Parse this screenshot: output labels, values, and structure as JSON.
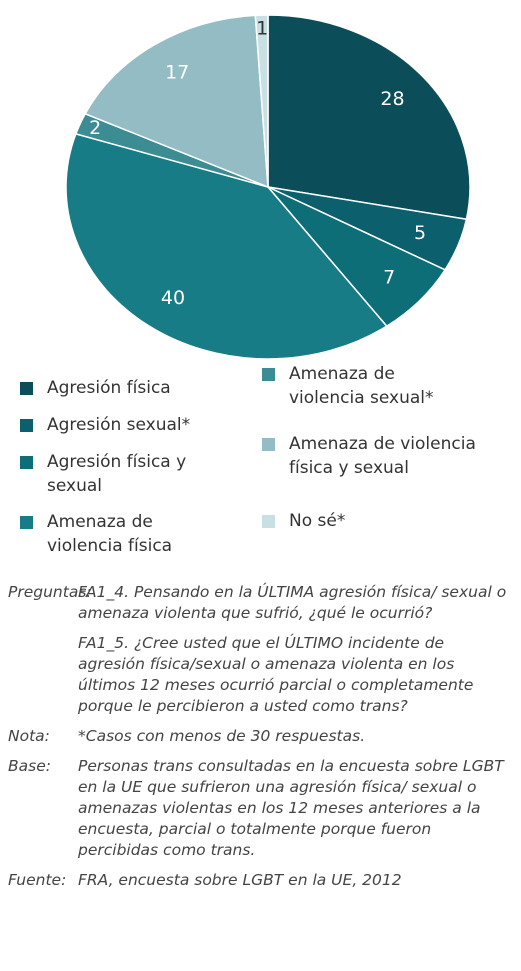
{
  "chart_data": {
    "type": "pie",
    "categories": [
      "Agresión física",
      "Agresión sexual*",
      "Agresión física y sexual",
      "Amenaza de violencia física",
      "Amenaza de violencia sexual*",
      "Amenaza de violencia física y sexual",
      "No sé*"
    ],
    "values": [
      28,
      5,
      7,
      40,
      2,
      17,
      1
    ],
    "colors": [
      "#0b4e5a",
      "#0c5f6c",
      "#0e6e78",
      "#177c86",
      "#3b8c93",
      "#94bcc4",
      "#c8dfe3"
    ]
  },
  "notes": [
    {
      "label": "Preguntas:",
      "paragraphs": [
        "FA1_4. Pensando en la ÚLTIMA agresión física/ sexual o amenaza violenta que sufrió, ¿qué le ocurrió?",
        "FA1_5. ¿Cree usted que el ÚLTIMO incidente de agresión física/sexual o amenaza violenta en los últimos 12 meses ocurrió parcial o completamente porque le percibieron a usted como trans?"
      ]
    },
    {
      "label": "Nota:",
      "paragraphs": [
        "*Casos con menos de 30 respuestas."
      ]
    },
    {
      "label": "Base:",
      "paragraphs": [
        "Personas trans consultadas en la encuesta sobre LGBT en la UE que sufrieron una agresión física/ sexual o amenazas violentas en los 12 meses anteriores a la encuesta, parcial o totalmente porque fueron percibidas como trans."
      ]
    },
    {
      "label": "Fuente:",
      "paragraphs": [
        "FRA, encuesta sobre LGBT en la UE, 2012"
      ]
    }
  ]
}
